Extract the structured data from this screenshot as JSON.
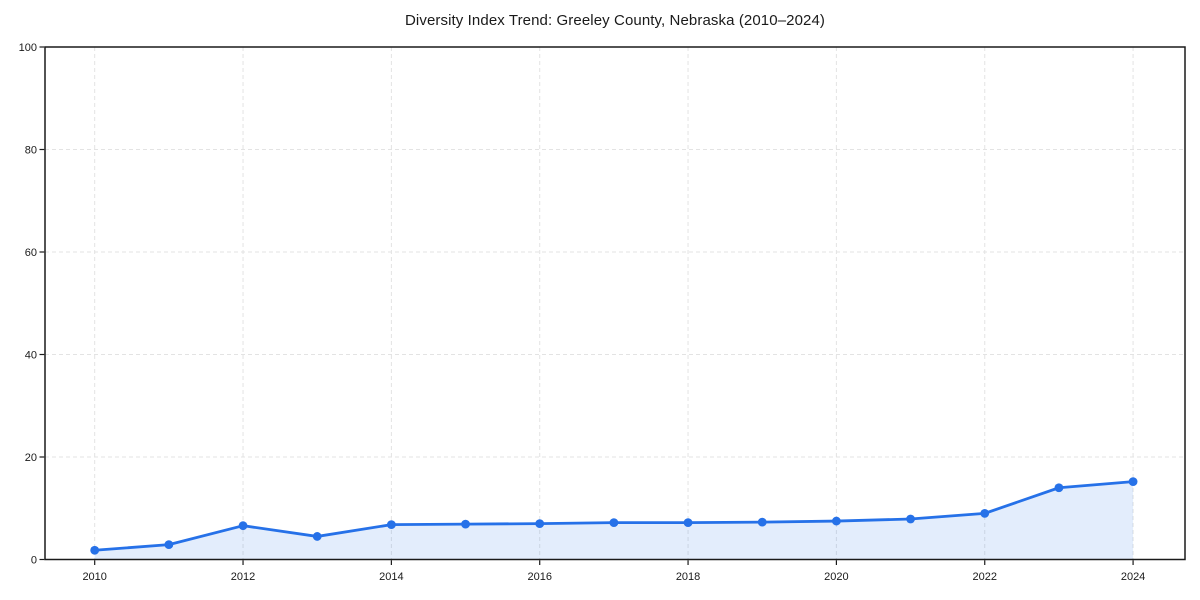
{
  "chart_data": {
    "type": "area",
    "title": "Diversity Index Trend: Greeley County, Nebraska (2010–2024)",
    "series_name": "Diversity Index",
    "x": [
      2010,
      2011,
      2012,
      2013,
      2014,
      2015,
      2016,
      2017,
      2018,
      2019,
      2020,
      2021,
      2022,
      2023,
      2024
    ],
    "values": [
      1.8,
      2.9,
      6.6,
      4.5,
      6.8,
      6.9,
      7.0,
      7.2,
      7.2,
      7.3,
      7.5,
      7.9,
      9.0,
      14.0,
      15.2
    ],
    "xticks": [
      2010,
      2012,
      2014,
      2016,
      2018,
      2020,
      2022,
      2024
    ],
    "yticks": [
      0,
      20,
      40,
      60,
      80,
      100
    ],
    "xlim": [
      2009.33,
      2024.7
    ],
    "ylim": [
      0,
      100
    ],
    "grid": true,
    "legend_position": "none",
    "colors": {
      "line": "#2671e8",
      "marker": "#2671e8",
      "fill": "rgba(38, 113, 232, 0.13)",
      "grid": "#e3e3e3",
      "axis": "#1a1a1a",
      "text": "#1a1a1a",
      "background": "#ffffff"
    }
  }
}
